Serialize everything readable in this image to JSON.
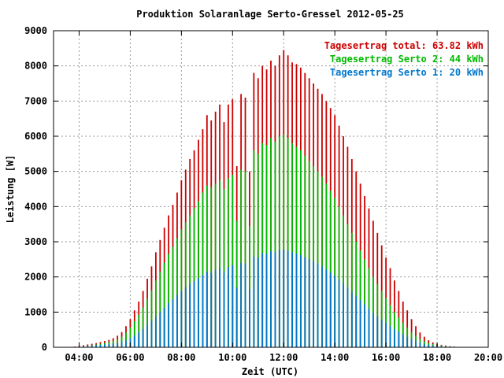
{
  "chart_data": {
    "type": "bar",
    "title": "Produktion Solaranlage Serto-Gressel 2012-05-25",
    "xlabel": "Zeit (UTC)",
    "ylabel": "Leistung [W]",
    "xlim": [
      "03:00",
      "20:00"
    ],
    "ylim": [
      0,
      9000
    ],
    "xticks": [
      "04:00",
      "06:00",
      "08:00",
      "10:00",
      "12:00",
      "14:00",
      "16:00",
      "18:00",
      "20:00"
    ],
    "yticks": [
      "0",
      "1000",
      "2000",
      "3000",
      "4000",
      "5000",
      "6000",
      "7000",
      "8000",
      "9000"
    ],
    "grid": true,
    "legend_position": "top-right",
    "colors": {
      "total": "#cc0000",
      "serto2": "#00bb00",
      "serto1": "#0077cc"
    },
    "legend": [
      {
        "label": "Tagesertrag total: 63.82 kWh",
        "color": "#cc0000"
      },
      {
        "label": "Tagesertrag Serto 2: 44 kWh",
        "color": "#00bb00"
      },
      {
        "label": "Tagesertrag Serto 1: 20 kWh",
        "color": "#0077cc"
      }
    ],
    "x": [
      "03:50",
      "04:00",
      "04:10",
      "04:20",
      "04:30",
      "04:40",
      "04:50",
      "05:00",
      "05:10",
      "05:20",
      "05:30",
      "05:40",
      "05:50",
      "06:00",
      "06:10",
      "06:20",
      "06:30",
      "06:40",
      "06:50",
      "07:00",
      "07:10",
      "07:20",
      "07:30",
      "07:40",
      "07:50",
      "08:00",
      "08:10",
      "08:20",
      "08:30",
      "08:40",
      "08:50",
      "09:00",
      "09:10",
      "09:20",
      "09:30",
      "09:40",
      "09:50",
      "10:00",
      "10:10",
      "10:20",
      "10:30",
      "10:40",
      "10:50",
      "11:00",
      "11:10",
      "11:20",
      "11:30",
      "11:40",
      "11:50",
      "12:00",
      "12:10",
      "12:20",
      "12:30",
      "12:40",
      "12:50",
      "13:00",
      "13:10",
      "13:20",
      "13:30",
      "13:40",
      "13:50",
      "14:00",
      "14:10",
      "14:20",
      "14:30",
      "14:40",
      "14:50",
      "15:00",
      "15:10",
      "15:20",
      "15:30",
      "15:40",
      "15:50",
      "16:00",
      "16:10",
      "16:20",
      "16:30",
      "16:40",
      "16:50",
      "17:00",
      "17:10",
      "17:20",
      "17:30",
      "17:40",
      "17:50",
      "18:00",
      "18:10",
      "18:20",
      "18:30",
      "18:40",
      "18:50",
      "19:00"
    ],
    "series": [
      {
        "name": "Tagesertrag total: 63.82 kWh",
        "color": "#cc0000",
        "values": [
          20,
          40,
          60,
          80,
          100,
          120,
          150,
          180,
          210,
          260,
          330,
          430,
          600,
          800,
          1050,
          1300,
          1600,
          1950,
          2300,
          2700,
          3050,
          3400,
          3750,
          4050,
          4400,
          4750,
          5050,
          5350,
          5600,
          5900,
          6200,
          6600,
          6450,
          6700,
          6900,
          6400,
          6900,
          7050,
          5150,
          7200,
          7100,
          5000,
          7800,
          7650,
          8000,
          7900,
          8150,
          8000,
          8300,
          8450,
          8300,
          8100,
          8050,
          7950,
          7800,
          7650,
          7500,
          7350,
          7200,
          7000,
          6800,
          6600,
          6300,
          6000,
          5700,
          5350,
          5000,
          4650,
          4300,
          3950,
          3600,
          3250,
          2900,
          2550,
          2250,
          1900,
          1600,
          1300,
          1050,
          800,
          600,
          420,
          300,
          200,
          140,
          100,
          70,
          50,
          30,
          20,
          10,
          5
        ]
      },
      {
        "name": "Tagesertrag Serto 2: 44 kWh",
        "color": "#00bb00",
        "values": [
          10,
          20,
          30,
          40,
          60,
          80,
          100,
          120,
          150,
          180,
          220,
          300,
          420,
          560,
          740,
          920,
          1130,
          1380,
          1620,
          1900,
          2150,
          2400,
          2650,
          2850,
          3100,
          3350,
          3550,
          3750,
          3950,
          4150,
          4400,
          4600,
          4550,
          4650,
          4750,
          4500,
          4800,
          4900,
          3600,
          5050,
          5000,
          3450,
          5600,
          5500,
          5800,
          5750,
          5950,
          5850,
          6000,
          6050,
          5950,
          5800,
          5700,
          5600,
          5450,
          5300,
          5150,
          5000,
          4850,
          4650,
          4450,
          4250,
          4000,
          3750,
          3500,
          3250,
          3000,
          2750,
          2500,
          2250,
          2000,
          1800,
          1600,
          1400,
          1200,
          1000,
          850,
          700,
          560,
          430,
          330,
          240,
          170,
          120,
          90,
          70,
          50,
          35,
          22,
          14,
          8,
          4
        ]
      },
      {
        "name": "Tagesertrag Serto 1: 20 kWh",
        "color": "#0077cc",
        "values": [
          10,
          20,
          30,
          40,
          50,
          60,
          70,
          80,
          90,
          100,
          120,
          150,
          190,
          250,
          330,
          420,
          520,
          640,
          760,
          880,
          1000,
          1120,
          1250,
          1360,
          1480,
          1600,
          1700,
          1800,
          1880,
          1960,
          2050,
          2150,
          2120,
          2200,
          2250,
          2130,
          2280,
          2330,
          1700,
          2400,
          2380,
          1650,
          2580,
          2550,
          2680,
          2660,
          2730,
          2700,
          2760,
          2780,
          2740,
          2700,
          2660,
          2620,
          2560,
          2500,
          2440,
          2380,
          2310,
          2220,
          2130,
          2040,
          1930,
          1820,
          1700,
          1580,
          1460,
          1340,
          1220,
          1100,
          980,
          880,
          780,
          690,
          600,
          520,
          440,
          370,
          300,
          240,
          190,
          140,
          100,
          70,
          55,
          45,
          35,
          25,
          16,
          10,
          6,
          3
        ]
      }
    ]
  }
}
